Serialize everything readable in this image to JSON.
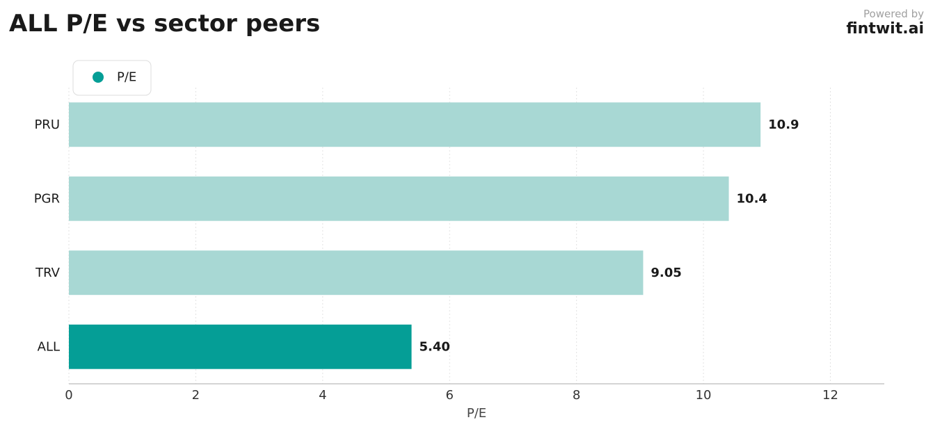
{
  "header": {
    "title": "ALL P/E vs sector peers",
    "powered_by": "Powered by",
    "brand": "fintwit.ai"
  },
  "chart_data": {
    "type": "bar",
    "orientation": "horizontal",
    "categories": [
      "PRU",
      "PGR",
      "TRV",
      "ALL"
    ],
    "series": [
      {
        "name": "P/E",
        "values": [
          10.9,
          10.4,
          9.05,
          5.4
        ],
        "value_labels": [
          "10.9",
          "10.4",
          "9.05",
          "5.40"
        ]
      }
    ],
    "highlight": "ALL",
    "xlabel": "P/E",
    "ylabel": "",
    "xlim": [
      0,
      12.85
    ],
    "xticks": [
      0,
      2,
      4,
      6,
      8,
      10,
      12
    ],
    "grid": "vertical-dotted",
    "legend_position": "top-left",
    "colors": {
      "highlight": "#059e96",
      "peer": "#a8d8d4",
      "axis": "#bbbbbb",
      "grid": "#e2e2e2"
    }
  }
}
